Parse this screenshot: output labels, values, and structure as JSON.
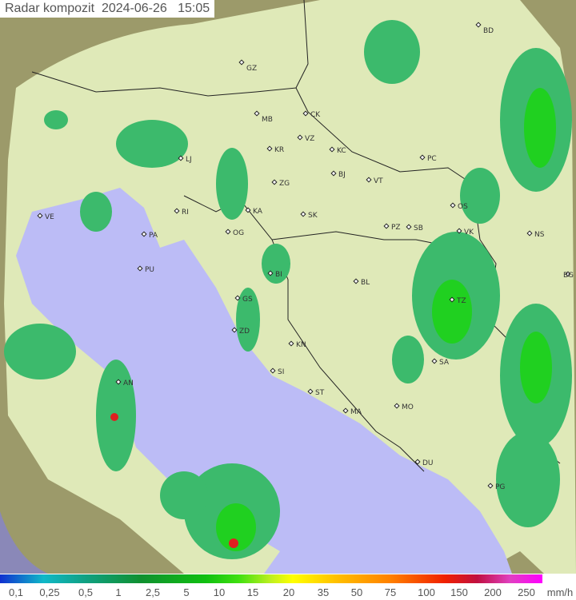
{
  "title": "Radar kompozit  2024-06-26   15:05",
  "legend": {
    "unit": "mm/h",
    "ticks": [
      "0,1",
      "0,25",
      "0,5",
      "1",
      "2,5",
      "5",
      "10",
      "15",
      "20",
      "35",
      "50",
      "75",
      "100",
      "150",
      "200",
      "250"
    ]
  },
  "colors": {
    "terrain": "#9c9a6a",
    "coverage": "#dfe9b8",
    "sea": "#bcbcf6",
    "rain_light": "#3cba6c",
    "rain_mid": "#20d020",
    "rain_heavy": "#e02020"
  },
  "cities": [
    {
      "code": "GZ"
    },
    {
      "code": "MB"
    },
    {
      "code": "CK"
    },
    {
      "code": "VZ"
    },
    {
      "code": "KR"
    },
    {
      "code": "KC"
    },
    {
      "code": "PC"
    },
    {
      "code": "LJ"
    },
    {
      "code": "ZG"
    },
    {
      "code": "BJ"
    },
    {
      "code": "VT"
    },
    {
      "code": "BD"
    },
    {
      "code": "VE"
    },
    {
      "code": "RI"
    },
    {
      "code": "KA"
    },
    {
      "code": "SK"
    },
    {
      "code": "OS"
    },
    {
      "code": "PA"
    },
    {
      "code": "OG"
    },
    {
      "code": "PZ"
    },
    {
      "code": "SB"
    },
    {
      "code": "VK"
    },
    {
      "code": "NS"
    },
    {
      "code": "PU"
    },
    {
      "code": "GS"
    },
    {
      "code": "BI"
    },
    {
      "code": "BL"
    },
    {
      "code": "BG"
    },
    {
      "code": "TZ"
    },
    {
      "code": "ZD"
    },
    {
      "code": "KN"
    },
    {
      "code": "SI"
    },
    {
      "code": "SA"
    },
    {
      "code": "AN"
    },
    {
      "code": "ST"
    },
    {
      "code": "MA"
    },
    {
      "code": "MO"
    },
    {
      "code": "DU"
    },
    {
      "code": "PG"
    }
  ]
}
